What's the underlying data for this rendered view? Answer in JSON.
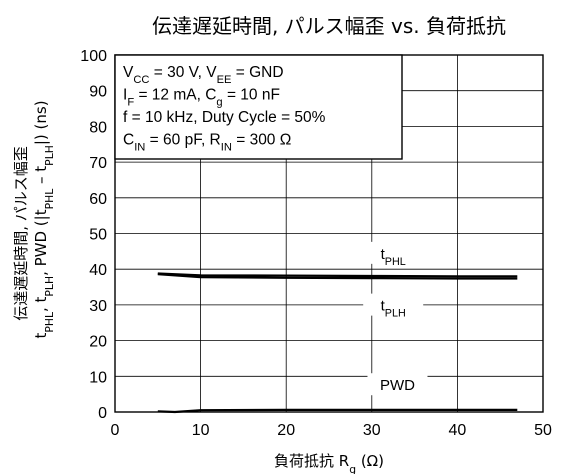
{
  "chart_data": {
    "type": "line",
    "title": "伝達遅延時間, パルス幅歪 vs. 負荷抵抗",
    "xlabel": {
      "main": "負荷抵抗 R",
      "sub": "g",
      "unit": " (Ω)"
    },
    "ylabel": {
      "line1": "伝達遅延時間, パルス幅歪",
      "line2": [
        {
          "t": "t",
          "s": ""
        },
        {
          "t": "PHL",
          "s": "sub"
        },
        {
          "t": ", t",
          "s": ""
        },
        {
          "t": "PLH",
          "s": "sub"
        },
        {
          "t": ", PWD (|t",
          "s": ""
        },
        {
          "t": "PHL",
          "s": "sub"
        },
        {
          "t": " – t",
          "s": ""
        },
        {
          "t": "PLH",
          "s": "sub"
        },
        {
          "t": "|) (ns)",
          "s": ""
        }
      ]
    },
    "xlim": [
      0,
      50
    ],
    "ylim": [
      0,
      100
    ],
    "xticks": [
      "0",
      "10",
      "20",
      "30",
      "40",
      "50"
    ],
    "yticks": [
      "0",
      "10",
      "20",
      "30",
      "40",
      "50",
      "60",
      "70",
      "80",
      "90",
      "100"
    ],
    "grid": true,
    "conditions": [
      [
        {
          "t": "V",
          "s": ""
        },
        {
          "t": "CC",
          "s": "sub"
        },
        {
          "t": " = 30 V, V",
          "s": ""
        },
        {
          "t": "EE",
          "s": "sub"
        },
        {
          "t": " = GND",
          "s": ""
        }
      ],
      [
        {
          "t": "I",
          "s": ""
        },
        {
          "t": "F",
          "s": "sub"
        },
        {
          "t": " = 12 mA, C",
          "s": ""
        },
        {
          "t": "g",
          "s": "sub"
        },
        {
          "t": " = 10 nF",
          "s": ""
        }
      ],
      [
        {
          "t": "f = 10 kHz, Duty Cycle = 50%",
          "s": ""
        }
      ],
      [
        {
          "t": "C",
          "s": ""
        },
        {
          "t": "IN",
          "s": "sub"
        },
        {
          "t": " = 60 pF, R",
          "s": ""
        },
        {
          "t": "IN",
          "s": "sub"
        },
        {
          "t": " = 300 Ω",
          "s": ""
        }
      ]
    ],
    "series": [
      {
        "label": [
          {
            "t": "t",
            "s": ""
          },
          {
            "t": "PHL",
            "s": "sub"
          }
        ],
        "x": [
          5,
          10,
          20,
          30,
          40,
          47
        ],
        "y": [
          38.8,
          38.3,
          38.2,
          38.1,
          38.0,
          38.0
        ]
      },
      {
        "label": [
          {
            "t": "t",
            "s": ""
          },
          {
            "t": "PLH",
            "s": "sub"
          }
        ],
        "x": [
          5,
          10,
          20,
          30,
          40,
          47
        ],
        "y": [
          38.6,
          37.8,
          37.6,
          37.5,
          37.4,
          37.4
        ]
      },
      {
        "label": [
          {
            "t": "PWD",
            "s": ""
          }
        ],
        "x": [
          5,
          7,
          10,
          20,
          30,
          40,
          47
        ],
        "y": [
          0.2,
          0.0,
          0.5,
          0.6,
          0.6,
          0.6,
          0.6
        ]
      }
    ]
  }
}
